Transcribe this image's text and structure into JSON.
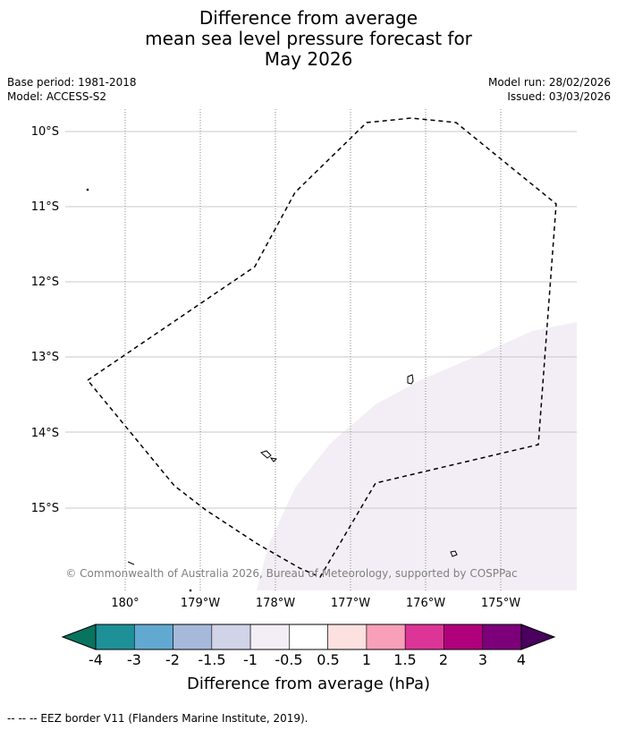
{
  "title": {
    "line1": "Difference from average",
    "line2": "mean sea level pressure forecast for",
    "line3": "May 2026"
  },
  "meta": {
    "base_period": "Base period: 1981-2018",
    "model": "Model: ACCESS-S2",
    "model_run": "Model run: 28/02/2026",
    "issued": "Issued: 03/03/2026"
  },
  "map": {
    "lat_labels": [
      "10°S",
      "11°S",
      "12°S",
      "13°S",
      "14°S",
      "15°S"
    ],
    "lon_labels": [
      "180°",
      "179°W",
      "178°W",
      "177°W",
      "176°W",
      "175°W"
    ],
    "copyright": "© Commonwealth of Australia 2026, Bureau of Meteorology, supported by COSPPac",
    "shaded_anomaly_category": "-0.5 to 0.5"
  },
  "colorbar": {
    "ticks": [
      "-4",
      "-3",
      "-2",
      "-1.5",
      "-1",
      "-0.5",
      "0.5",
      "1",
      "1.5",
      "2",
      "3",
      "4"
    ],
    "colors": [
      "#1e9097",
      "#62a9d1",
      "#a6b9db",
      "#d1d3e8",
      "#f3eef6",
      "#ffffff",
      "#fde0e0",
      "#f89fb9",
      "#dd3597",
      "#b1007c",
      "#7c007a"
    ],
    "under_color": "#08735f",
    "over_color": "#4a005c",
    "label": "Difference from average (hPa)"
  },
  "legend": {
    "eez_text": "--  --  -- EEZ border V11 (Flanders Marine Institute, 2019)."
  }
}
